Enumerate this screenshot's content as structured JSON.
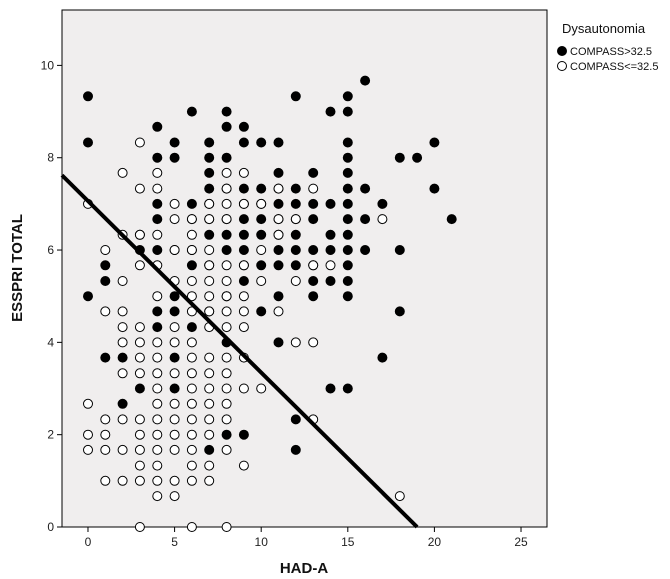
{
  "chart_data": {
    "type": "scatter",
    "xlabel": "HAD-A",
    "ylabel": "ESSPRI TOTAL",
    "xlim": [
      -1.5,
      26.5
    ],
    "ylim": [
      0,
      11.2
    ],
    "xticks": [
      0,
      5,
      10,
      15,
      20,
      25
    ],
    "yticks": [
      0,
      2,
      4,
      6,
      8,
      10
    ],
    "grid": false,
    "plot_background": "#f0eeee",
    "legend": {
      "title": "Dysautonomia",
      "placement": "right-top-outside"
    },
    "series": [
      {
        "name": "COMPASS>32.5",
        "marker": "filled-circle",
        "color": "#000000",
        "points": [
          [
            0,
            9.33
          ],
          [
            0,
            8.33
          ],
          [
            0,
            5
          ],
          [
            1,
            5.67
          ],
          [
            1,
            5.33
          ],
          [
            1,
            3.67
          ],
          [
            2,
            3.67
          ],
          [
            2,
            2.67
          ],
          [
            3,
            6.33
          ],
          [
            3,
            6
          ],
          [
            3,
            3
          ],
          [
            4,
            8.67
          ],
          [
            4,
            8
          ],
          [
            4,
            7
          ],
          [
            4,
            6.67
          ],
          [
            4,
            6
          ],
          [
            4,
            4.67
          ],
          [
            4,
            4.33
          ],
          [
            5,
            8.33
          ],
          [
            5,
            8
          ],
          [
            5,
            6
          ],
          [
            5,
            5
          ],
          [
            5,
            4.67
          ],
          [
            5,
            3.67
          ],
          [
            5,
            3
          ],
          [
            6,
            9
          ],
          [
            6,
            7
          ],
          [
            6,
            6.67
          ],
          [
            6,
            6
          ],
          [
            6,
            5.67
          ],
          [
            6,
            4.33
          ],
          [
            7,
            8.33
          ],
          [
            7,
            8
          ],
          [
            7,
            7.67
          ],
          [
            7,
            7.33
          ],
          [
            7,
            7
          ],
          [
            7,
            6.67
          ],
          [
            7,
            6.33
          ],
          [
            7,
            5.67
          ],
          [
            7,
            4.67
          ],
          [
            7,
            1.67
          ],
          [
            8,
            9
          ],
          [
            8,
            8.67
          ],
          [
            8,
            8
          ],
          [
            8,
            7.33
          ],
          [
            8,
            6.67
          ],
          [
            8,
            6.33
          ],
          [
            8,
            6
          ],
          [
            8,
            5
          ],
          [
            8,
            4
          ],
          [
            8,
            2
          ],
          [
            9,
            8.67
          ],
          [
            9,
            8.33
          ],
          [
            9,
            7.33
          ],
          [
            9,
            7
          ],
          [
            9,
            6.67
          ],
          [
            9,
            6.33
          ],
          [
            9,
            6
          ],
          [
            9,
            5.67
          ],
          [
            9,
            5.33
          ],
          [
            9,
            2
          ],
          [
            10,
            8.33
          ],
          [
            10,
            7.33
          ],
          [
            10,
            7
          ],
          [
            10,
            6.67
          ],
          [
            10,
            6.33
          ],
          [
            10,
            5.67
          ],
          [
            10,
            4.67
          ],
          [
            11,
            8.33
          ],
          [
            11,
            7.67
          ],
          [
            11,
            7.33
          ],
          [
            11,
            7
          ],
          [
            11,
            6.67
          ],
          [
            11,
            6.33
          ],
          [
            11,
            6
          ],
          [
            11,
            5.67
          ],
          [
            11,
            5
          ],
          [
            11,
            4
          ],
          [
            12,
            9.33
          ],
          [
            12,
            7.33
          ],
          [
            12,
            7
          ],
          [
            12,
            6.67
          ],
          [
            12,
            6.33
          ],
          [
            12,
            6
          ],
          [
            12,
            5.67
          ],
          [
            12,
            2.33
          ],
          [
            12,
            1.67
          ],
          [
            13,
            7.67
          ],
          [
            13,
            7
          ],
          [
            13,
            6.67
          ],
          [
            13,
            6
          ],
          [
            13,
            5.67
          ],
          [
            13,
            5.33
          ],
          [
            13,
            5
          ],
          [
            14,
            9
          ],
          [
            14,
            7
          ],
          [
            14,
            6.33
          ],
          [
            14,
            6
          ],
          [
            14,
            5.33
          ],
          [
            14,
            3
          ],
          [
            15,
            9.33
          ],
          [
            15,
            9
          ],
          [
            15,
            8.33
          ],
          [
            15,
            8
          ],
          [
            15,
            7.67
          ],
          [
            15,
            7.33
          ],
          [
            15,
            7
          ],
          [
            15,
            6.67
          ],
          [
            15,
            6.33
          ],
          [
            15,
            6
          ],
          [
            15,
            5.67
          ],
          [
            15,
            5.33
          ],
          [
            15,
            5
          ],
          [
            15,
            3
          ],
          [
            16,
            9.67
          ],
          [
            16,
            7.33
          ],
          [
            16,
            6.67
          ],
          [
            16,
            6
          ],
          [
            17,
            7
          ],
          [
            17,
            3.67
          ],
          [
            18,
            8
          ],
          [
            18,
            6
          ],
          [
            18,
            4.67
          ],
          [
            19,
            8
          ],
          [
            20,
            8.33
          ],
          [
            20,
            7.33
          ],
          [
            21,
            6.67
          ]
        ]
      },
      {
        "name": "COMPASS<=32.5",
        "marker": "open-circle",
        "color": "#000000",
        "points": [
          [
            0,
            7
          ],
          [
            0,
            2.67
          ],
          [
            0,
            2
          ],
          [
            0,
            1.67
          ],
          [
            1,
            6
          ],
          [
            1,
            4.67
          ],
          [
            1,
            2.33
          ],
          [
            1,
            2
          ],
          [
            1,
            1.67
          ],
          [
            1,
            1
          ],
          [
            2,
            7.67
          ],
          [
            2,
            6.33
          ],
          [
            2,
            5.33
          ],
          [
            2,
            4.67
          ],
          [
            2,
            4.33
          ],
          [
            2,
            4
          ],
          [
            2,
            3.33
          ],
          [
            2,
            2.33
          ],
          [
            2,
            1.67
          ],
          [
            2,
            1
          ],
          [
            3,
            8.33
          ],
          [
            3,
            7.33
          ],
          [
            3,
            6.33
          ],
          [
            3,
            5.67
          ],
          [
            3,
            4.33
          ],
          [
            3,
            4
          ],
          [
            3,
            3.67
          ],
          [
            3,
            3.33
          ],
          [
            3,
            2.33
          ],
          [
            3,
            2
          ],
          [
            3,
            1.67
          ],
          [
            3,
            1.33
          ],
          [
            3,
            1
          ],
          [
            3,
            0
          ],
          [
            4,
            7.67
          ],
          [
            4,
            7.33
          ],
          [
            4,
            6.33
          ],
          [
            4,
            5.67
          ],
          [
            4,
            5
          ],
          [
            4,
            4
          ],
          [
            4,
            3.67
          ],
          [
            4,
            3.33
          ],
          [
            4,
            3
          ],
          [
            4,
            2.67
          ],
          [
            4,
            2.33
          ],
          [
            4,
            2
          ],
          [
            4,
            1.67
          ],
          [
            4,
            1.33
          ],
          [
            4,
            1
          ],
          [
            4,
            0.67
          ],
          [
            5,
            7
          ],
          [
            5,
            6.67
          ],
          [
            5,
            6
          ],
          [
            5,
            5.33
          ],
          [
            5,
            4.33
          ],
          [
            5,
            4
          ],
          [
            5,
            3.33
          ],
          [
            5,
            2.67
          ],
          [
            5,
            2.33
          ],
          [
            5,
            2
          ],
          [
            5,
            1.67
          ],
          [
            5,
            1
          ],
          [
            5,
            0.67
          ],
          [
            6,
            6.67
          ],
          [
            6,
            6.33
          ],
          [
            6,
            6
          ],
          [
            6,
            5.33
          ],
          [
            6,
            5
          ],
          [
            6,
            4.67
          ],
          [
            6,
            4
          ],
          [
            6,
            3.67
          ],
          [
            6,
            3.33
          ],
          [
            6,
            3
          ],
          [
            6,
            2.67
          ],
          [
            6,
            2.33
          ],
          [
            6,
            2
          ],
          [
            6,
            1.67
          ],
          [
            6,
            1.33
          ],
          [
            6,
            1
          ],
          [
            6,
            0
          ],
          [
            7,
            7
          ],
          [
            7,
            6.67
          ],
          [
            7,
            6
          ],
          [
            7,
            5.67
          ],
          [
            7,
            5.33
          ],
          [
            7,
            5
          ],
          [
            7,
            4.67
          ],
          [
            7,
            4.33
          ],
          [
            7,
            3.67
          ],
          [
            7,
            3.33
          ],
          [
            7,
            3
          ],
          [
            7,
            2.67
          ],
          [
            7,
            2.33
          ],
          [
            7,
            2
          ],
          [
            7,
            1.33
          ],
          [
            7,
            1
          ],
          [
            8,
            7.67
          ],
          [
            8,
            7.33
          ],
          [
            8,
            7
          ],
          [
            8,
            6.67
          ],
          [
            8,
            5.67
          ],
          [
            8,
            5.33
          ],
          [
            8,
            5
          ],
          [
            8,
            4.67
          ],
          [
            8,
            4.33
          ],
          [
            8,
            3.67
          ],
          [
            8,
            3.33
          ],
          [
            8,
            3
          ],
          [
            8,
            2.67
          ],
          [
            8,
            2.33
          ],
          [
            8,
            1.67
          ],
          [
            8,
            0
          ],
          [
            9,
            7.67
          ],
          [
            9,
            7
          ],
          [
            9,
            5.67
          ],
          [
            9,
            5
          ],
          [
            9,
            4.67
          ],
          [
            9,
            4.33
          ],
          [
            9,
            3.67
          ],
          [
            9,
            3
          ],
          [
            9,
            1.33
          ],
          [
            10,
            7
          ],
          [
            10,
            6
          ],
          [
            10,
            5.33
          ],
          [
            10,
            3
          ],
          [
            11,
            7.33
          ],
          [
            11,
            6.67
          ],
          [
            11,
            6.33
          ],
          [
            11,
            4.67
          ],
          [
            12,
            6.67
          ],
          [
            12,
            5.33
          ],
          [
            12,
            4
          ],
          [
            13,
            7.33
          ],
          [
            13,
            5.67
          ],
          [
            13,
            4
          ],
          [
            13,
            2.33
          ],
          [
            14,
            5.67
          ],
          [
            17,
            6.67
          ],
          [
            18,
            0.67
          ]
        ]
      }
    ],
    "reference_line": {
      "kind": "linear",
      "y_at_xmin": 7.62,
      "y_at_x19": 0
    }
  }
}
